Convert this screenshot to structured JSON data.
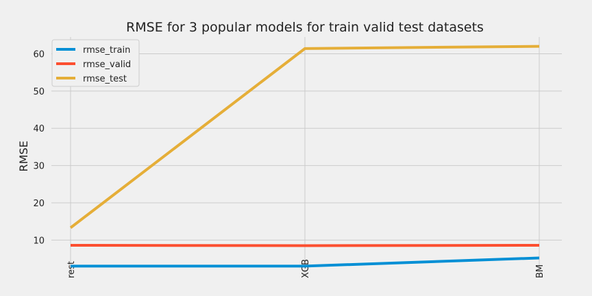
{
  "chart_data": {
    "type": "line",
    "title": "RMSE for 3 popular models for train valid test datasets",
    "xlabel": "",
    "ylabel": "RMSE",
    "categories": [
      "RandomForest",
      "XGB",
      "LightGBM"
    ],
    "visible_category_fragments": [
      "rest",
      "XGB",
      "BM"
    ],
    "y_ticks": [
      10,
      20,
      30,
      40,
      50,
      60
    ],
    "ylim": [
      0.5,
      64.5
    ],
    "grid": true,
    "legend_position": "top-left",
    "series": [
      {
        "name": "rmse_train",
        "color": "#008fd5",
        "values": [
          3.0,
          3.0,
          5.2
        ]
      },
      {
        "name": "rmse_valid",
        "color": "#fc4f30",
        "values": [
          8.6,
          8.5,
          8.6
        ]
      },
      {
        "name": "rmse_test",
        "color": "#e5ae38",
        "values": [
          13.3,
          61.4,
          62.0
        ]
      }
    ]
  }
}
